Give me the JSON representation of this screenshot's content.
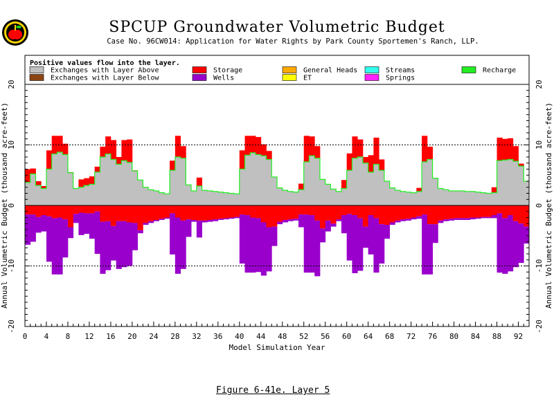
{
  "header": {
    "title": "SPCUP Groundwater Volumetric Budget",
    "subtitle": "Case No. 96CW014: Application for Water Rights by Park County Sportemen's Ranch, LLP."
  },
  "caption": "Figure 6-41e.  Layer 5",
  "logo_icon": "apple-seal-icon",
  "colors": {
    "above": "#c0c0c0",
    "below": "#8b4513",
    "storage": "#ff0000",
    "wells": "#9900cc",
    "general_heads": "#ffaa00",
    "et": "#ffff00",
    "streams": "#33ffee",
    "springs": "#ff22ff",
    "recharge": "#22ee22"
  },
  "chart_data": {
    "type": "area",
    "title": "",
    "xlabel": "Model Simulation Year",
    "ylabel": "Annual Volumetric Budget (thousand acre-feet)",
    "xlim": [
      0,
      94
    ],
    "ylim": [
      -20,
      20
    ],
    "x_ticks": [
      0,
      4,
      8,
      12,
      16,
      20,
      24,
      28,
      32,
      36,
      40,
      44,
      48,
      52,
      56,
      60,
      64,
      68,
      72,
      76,
      80,
      84,
      88,
      92
    ],
    "y_ticks": [
      -20,
      -10,
      0,
      10,
      20
    ],
    "reference_lines": [
      10,
      -10
    ],
    "grid": false,
    "legend_note": "Positive values flow into the layer.",
    "legend": [
      {
        "key": "above",
        "label": "Exchanges with Layer Above"
      },
      {
        "key": "storage",
        "label": "Storage"
      },
      {
        "key": "general_heads",
        "label": "General Heads"
      },
      {
        "key": "streams",
        "label": "Streams"
      },
      {
        "key": "recharge",
        "label": "Recharge"
      },
      {
        "key": "below",
        "label": "Exchanges with Layer Below"
      },
      {
        "key": "wells",
        "label": "Wells"
      },
      {
        "key": "et",
        "label": "ET"
      },
      {
        "key": "springs",
        "label": "Springs"
      }
    ],
    "legend_placement": "top",
    "x": [
      0,
      1,
      2,
      3,
      4,
      5,
      6,
      7,
      8,
      9,
      10,
      11,
      12,
      13,
      14,
      15,
      16,
      17,
      18,
      19,
      20,
      21,
      22,
      23,
      24,
      25,
      26,
      27,
      28,
      29,
      30,
      31,
      32,
      33,
      34,
      35,
      36,
      37,
      38,
      39,
      40,
      41,
      42,
      43,
      44,
      45,
      46,
      47,
      48,
      49,
      50,
      51,
      52,
      53,
      54,
      55,
      56,
      57,
      58,
      59,
      60,
      61,
      62,
      63,
      64,
      65,
      66,
      67,
      68,
      69,
      70,
      71,
      72,
      73,
      74,
      75,
      76,
      77,
      78,
      79,
      80,
      81,
      82,
      83,
      84,
      85,
      86,
      87,
      88,
      89,
      90,
      91,
      92,
      93
    ],
    "series": [
      {
        "key": "above",
        "name": "Exchanges with Layer Above",
        "values": [
          3.8,
          5.2,
          3.3,
          2.8,
          6.0,
          8.5,
          8.8,
          8.4,
          5.4,
          2.8,
          3.0,
          3.3,
          3.5,
          5.5,
          8.0,
          8.5,
          7.6,
          6.8,
          7.4,
          7.1,
          5.7,
          4.2,
          3.0,
          2.6,
          2.4,
          2.1,
          1.9,
          5.8,
          8.0,
          7.8,
          3.4,
          2.4,
          3.2,
          2.5,
          2.4,
          2.3,
          2.2,
          2.1,
          2.0,
          1.9,
          6.0,
          8.3,
          8.7,
          8.4,
          8.2,
          7.6,
          4.7,
          2.9,
          2.5,
          2.3,
          2.2,
          2.6,
          7.2,
          8.2,
          7.8,
          4.3,
          3.5,
          2.7,
          2.3,
          2.8,
          5.8,
          7.8,
          8.0,
          7.0,
          5.5,
          6.8,
          5.8,
          4.0,
          2.9,
          2.5,
          2.3,
          2.2,
          2.1,
          2.3,
          7.2,
          7.6,
          4.5,
          2.8,
          2.6,
          2.4,
          2.4,
          2.4,
          2.3,
          2.3,
          2.2,
          2.1,
          2.0,
          2.1,
          7.4,
          7.5,
          7.6,
          7.3,
          6.5,
          4.0
        ]
      },
      {
        "key": "storage",
        "name": "Storage",
        "values": [
          2.2,
          0.9,
          0.7,
          0.4,
          3.1,
          3.0,
          2.7,
          1.8,
          0.1,
          0.0,
          1.3,
          1.2,
          1.3,
          0.9,
          1.7,
          2.9,
          3.2,
          1.2,
          3.4,
          3.8,
          0.1,
          0.0,
          0.0,
          0.0,
          0.0,
          0.0,
          0.0,
          1.6,
          3.5,
          2.0,
          0.0,
          0.0,
          1.4,
          0.0,
          0.0,
          0.0,
          0.0,
          0.0,
          0.0,
          0.0,
          3.1,
          3.2,
          2.8,
          2.9,
          1.9,
          1.4,
          0.0,
          0.0,
          0.0,
          0.0,
          0.0,
          1.0,
          4.3,
          3.2,
          2.0,
          0.0,
          0.0,
          0.0,
          0.0,
          1.4,
          2.8,
          3.6,
          2.9,
          1.0,
          2.8,
          4.4,
          1.8,
          0.0,
          0.0,
          0.0,
          0.0,
          0.0,
          0.0,
          0.6,
          4.3,
          2.1,
          0.0,
          0.0,
          0.0,
          0.0,
          0.0,
          0.0,
          0.0,
          0.0,
          0.0,
          0.0,
          0.0,
          0.9,
          3.8,
          3.5,
          3.5,
          2.5,
          0.4,
          0.0
        ]
      },
      {
        "key": "wells",
        "name": "Wells",
        "values": [
          -5.0,
          -4.5,
          -2.6,
          -2.7,
          -7.5,
          -9.3,
          -9.4,
          -6.3,
          -1.8,
          -1.5,
          -3.7,
          -3.4,
          -4.2,
          -7.0,
          -8.6,
          -8.1,
          -5.7,
          -7.9,
          -7.6,
          -7.2,
          -4.5,
          -0.5,
          -0.3,
          -0.3,
          -0.2,
          -0.2,
          -0.2,
          -6.8,
          -9.3,
          -8.0,
          -2.9,
          -0.3,
          -2.8,
          -0.3,
          -0.3,
          -0.3,
          -0.2,
          -0.2,
          -0.2,
          -0.2,
          -8.1,
          -9.5,
          -9.1,
          -8.9,
          -8.8,
          -7.3,
          -3.2,
          -0.4,
          -0.4,
          -0.3,
          -0.3,
          -2.1,
          -9.6,
          -9.5,
          -9.2,
          -2.3,
          -1.8,
          -0.5,
          -0.3,
          -3.0,
          -7.7,
          -9.6,
          -8.7,
          -3.5,
          -6.5,
          -9.0,
          -6.5,
          -2.3,
          -0.4,
          -0.3,
          -0.3,
          -0.3,
          -0.3,
          -0.4,
          -9.9,
          -8.3,
          -3.1,
          -0.4,
          -0.3,
          -0.3,
          -0.3,
          -0.3,
          -0.3,
          -0.3,
          -0.2,
          -0.2,
          -0.2,
          -0.5,
          -9.8,
          -9.2,
          -9.3,
          -7.6,
          -6.5,
          -2.8
        ]
      },
      {
        "key": "storage_out",
        "name": "Storage",
        "values": [
          -1.5,
          -1.5,
          -1.9,
          -1.6,
          -1.8,
          -2.1,
          -2.0,
          -2.3,
          -3.6,
          -1.4,
          -1.2,
          -1.3,
          -1.3,
          -1.0,
          -2.7,
          -2.6,
          -3.4,
          -2.6,
          -2.6,
          -2.8,
          -2.9,
          -4.1,
          -2.9,
          -2.6,
          -2.4,
          -2.2,
          -2.0,
          -1.3,
          -2.0,
          -2.5,
          -2.3,
          -2.4,
          -2.5,
          -2.5,
          -2.4,
          -2.3,
          -2.2,
          -2.1,
          -2.0,
          -1.9,
          -1.5,
          -1.6,
          -2.0,
          -2.1,
          -2.8,
          -3.6,
          -3.5,
          -2.7,
          -2.4,
          -2.3,
          -2.2,
          -1.5,
          -1.5,
          -1.6,
          -2.5,
          -3.8,
          -2.5,
          -3.0,
          -2.3,
          -1.6,
          -1.4,
          -1.6,
          -2.1,
          -3.5,
          -1.6,
          -2.1,
          -3.1,
          -3.2,
          -2.8,
          -2.5,
          -2.3,
          -2.2,
          -2.0,
          -1.8,
          -1.5,
          -3.1,
          -3.1,
          -2.5,
          -2.3,
          -2.2,
          -2.1,
          -2.1,
          -2.1,
          -2.0,
          -2.0,
          -1.9,
          -1.9,
          -1.6,
          -1.3,
          -2.1,
          -1.6,
          -2.6,
          -3.0,
          -3.5
        ]
      }
    ]
  }
}
